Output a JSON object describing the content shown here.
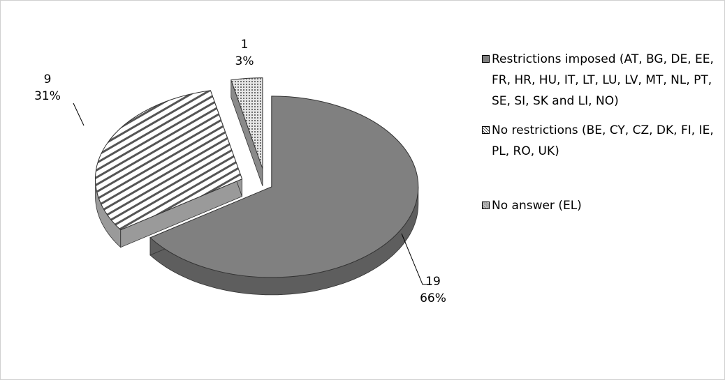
{
  "chart_data": {
    "type": "pie",
    "title": "",
    "categories": [
      "Restrictions imposed (AT, BG, DE, EE, FR, HR, HU, IT, LT, LU, LV, MT, NL, PT, SE, SI, SK and LI, NO)",
      "No restrictions (BE, CY, CZ, DK, FI, IE, PL, RO, UK)",
      "No answer (EL)"
    ],
    "values": [
      19,
      9,
      1
    ],
    "percent_labels": [
      "66%",
      "31%",
      "3%"
    ],
    "count_labels": [
      "19",
      "9",
      "1"
    ],
    "colors": [
      "#808080",
      "#ffffff",
      "#cccccc"
    ],
    "fill_patterns": [
      "solid",
      "diagonal-stripes",
      "dotted"
    ],
    "three_d": true,
    "exploded": true,
    "legend_position": "right",
    "grid": false
  }
}
